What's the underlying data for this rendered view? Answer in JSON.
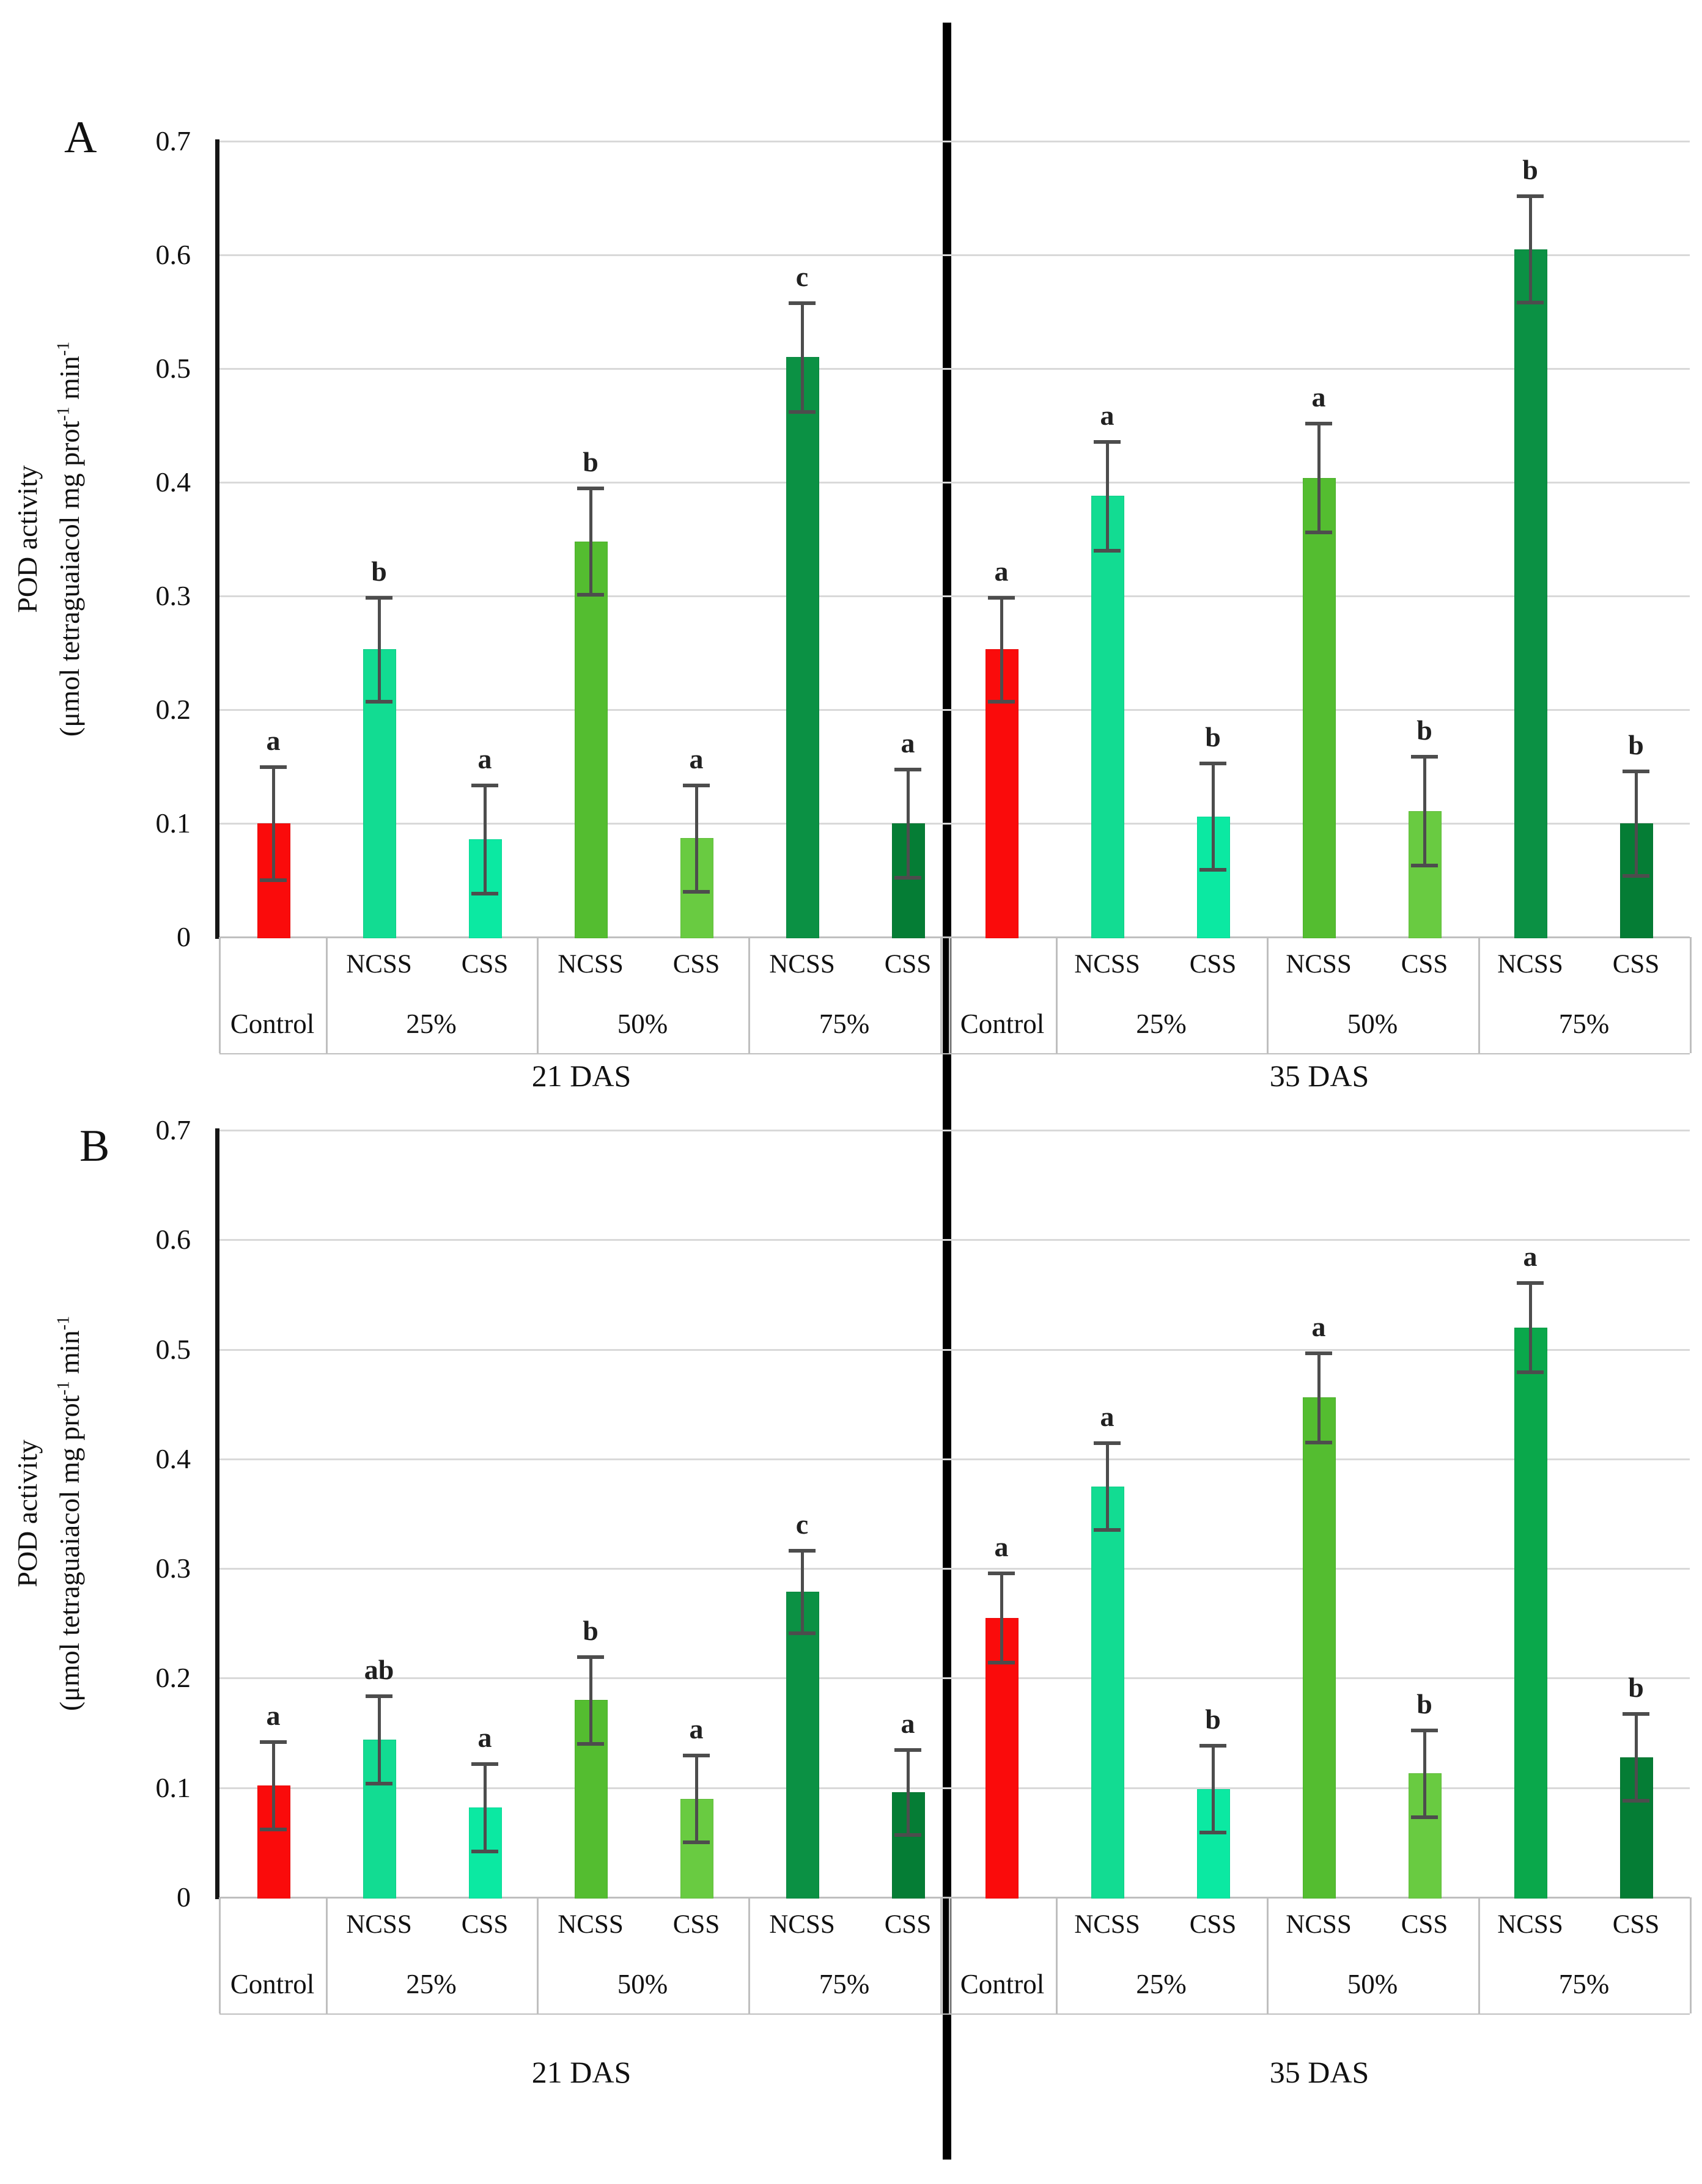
{
  "figure": {
    "panel_a_label": "A",
    "panel_b_label": "B",
    "divider": {
      "color": "#000000"
    }
  },
  "y_axis": {
    "title_line1": "POD activity",
    "unit_prefix": "(μmol tetraguaiacol mg prot",
    "sup1": "-1",
    "unit_mid": " min",
    "sup2": "-1",
    "tick_labels": [
      "0",
      "0.1",
      "0.2",
      "0.3",
      "0.4",
      "0.5",
      "0.6",
      "0.7"
    ]
  },
  "colors": {
    "control": "#fa0b0b",
    "ncss25": "#12dc92",
    "css25": "#0be9a2",
    "ncss50": "#54bd30",
    "css50": "#69cb41",
    "ncss75_dark": "#0b9144",
    "css75_dark": "#057d35",
    "ncss75_medium": "#0aa84b",
    "error_bar": "#4d4d4d",
    "gridline": "#d9d9d9"
  },
  "chart_data": [
    {
      "panel": "A",
      "type": "bar",
      "ylabel": "POD activity (μmol tetraguaiacol mg prot⁻¹ min⁻¹",
      "ylim": [
        0,
        0.7
      ],
      "ytick_step": 0.1,
      "grid": true,
      "sections": [
        {
          "label": "21 DAS",
          "groups": [
            {
              "label": "Control",
              "bars": [
                {
                  "sub": "",
                  "value": 0.1,
                  "err": 0.05,
                  "letter": "a",
                  "color": "#fa0b0b"
                }
              ]
            },
            {
              "label": "25%",
              "bars": [
                {
                  "sub": "NCSS",
                  "value": 0.253,
                  "err": 0.046,
                  "letter": "b",
                  "color": "#12dc92"
                },
                {
                  "sub": "CSS",
                  "value": 0.086,
                  "err": 0.048,
                  "letter": "a",
                  "color": "#0be9a2"
                }
              ]
            },
            {
              "label": "50%",
              "bars": [
                {
                  "sub": "NCSS",
                  "value": 0.348,
                  "err": 0.047,
                  "letter": "b",
                  "color": "#54bd30"
                },
                {
                  "sub": "CSS",
                  "value": 0.087,
                  "err": 0.047,
                  "letter": "a",
                  "color": "#69cb41"
                }
              ]
            },
            {
              "label": "75%",
              "bars": [
                {
                  "sub": "NCSS",
                  "value": 0.51,
                  "err": 0.048,
                  "letter": "c",
                  "color": "#0b9144"
                },
                {
                  "sub": "CSS",
                  "value": 0.1,
                  "err": 0.048,
                  "letter": "a",
                  "color": "#057d35"
                }
              ]
            }
          ]
        },
        {
          "label": "35 DAS",
          "groups": [
            {
              "label": "Control",
              "bars": [
                {
                  "sub": "",
                  "value": 0.253,
                  "err": 0.046,
                  "letter": "a",
                  "color": "#fa0b0b"
                }
              ]
            },
            {
              "label": "25%",
              "bars": [
                {
                  "sub": "NCSS",
                  "value": 0.388,
                  "err": 0.048,
                  "letter": "a",
                  "color": "#12dc92"
                },
                {
                  "sub": "CSS",
                  "value": 0.106,
                  "err": 0.047,
                  "letter": "b",
                  "color": "#0be9a2"
                }
              ]
            },
            {
              "label": "50%",
              "bars": [
                {
                  "sub": "NCSS",
                  "value": 0.404,
                  "err": 0.048,
                  "letter": "a",
                  "color": "#54bd30"
                },
                {
                  "sub": "CSS",
                  "value": 0.111,
                  "err": 0.048,
                  "letter": "b",
                  "color": "#69cb41"
                }
              ]
            },
            {
              "label": "75%",
              "bars": [
                {
                  "sub": "NCSS",
                  "value": 0.605,
                  "err": 0.047,
                  "letter": "b",
                  "color": "#0b9144"
                },
                {
                  "sub": "CSS",
                  "value": 0.1,
                  "err": 0.046,
                  "letter": "b",
                  "color": "#057d35"
                }
              ]
            }
          ]
        }
      ]
    },
    {
      "panel": "B",
      "type": "bar",
      "ylabel": "POD activity (μmol tetraguaiacol mg prot⁻¹ min⁻¹",
      "ylim": [
        0,
        0.7
      ],
      "ytick_step": 0.1,
      "grid": true,
      "sections": [
        {
          "label": "21 DAS",
          "groups": [
            {
              "label": "Control",
              "bars": [
                {
                  "sub": "",
                  "value": 0.102,
                  "err": 0.04,
                  "letter": "a",
                  "color": "#fa0b0b"
                }
              ]
            },
            {
              "label": "25%",
              "bars": [
                {
                  "sub": "NCSS",
                  "value": 0.144,
                  "err": 0.04,
                  "letter": "ab",
                  "color": "#12dc92"
                },
                {
                  "sub": "CSS",
                  "value": 0.082,
                  "err": 0.04,
                  "letter": "a",
                  "color": "#0be9a2"
                }
              ]
            },
            {
              "label": "50%",
              "bars": [
                {
                  "sub": "NCSS",
                  "value": 0.18,
                  "err": 0.04,
                  "letter": "b",
                  "color": "#54bd30"
                },
                {
                  "sub": "CSS",
                  "value": 0.09,
                  "err": 0.04,
                  "letter": "a",
                  "color": "#69cb41"
                }
              ]
            },
            {
              "label": "75%",
              "bars": [
                {
                  "sub": "NCSS",
                  "value": 0.279,
                  "err": 0.038,
                  "letter": "c",
                  "color": "#0b9144"
                },
                {
                  "sub": "CSS",
                  "value": 0.096,
                  "err": 0.039,
                  "letter": "a",
                  "color": "#057d35"
                }
              ]
            }
          ]
        },
        {
          "label": "35 DAS",
          "groups": [
            {
              "label": "Control",
              "bars": [
                {
                  "sub": "",
                  "value": 0.255,
                  "err": 0.041,
                  "letter": "a",
                  "color": "#fa0b0b"
                }
              ]
            },
            {
              "label": "25%",
              "bars": [
                {
                  "sub": "NCSS",
                  "value": 0.375,
                  "err": 0.04,
                  "letter": "a",
                  "color": "#12dc92"
                },
                {
                  "sub": "CSS",
                  "value": 0.099,
                  "err": 0.04,
                  "letter": "b",
                  "color": "#0be9a2"
                }
              ]
            },
            {
              "label": "50%",
              "bars": [
                {
                  "sub": "NCSS",
                  "value": 0.456,
                  "err": 0.041,
                  "letter": "a",
                  "color": "#54bd30"
                },
                {
                  "sub": "CSS",
                  "value": 0.113,
                  "err": 0.04,
                  "letter": "b",
                  "color": "#69cb41"
                }
              ]
            },
            {
              "label": "75%",
              "bars": [
                {
                  "sub": "NCSS",
                  "value": 0.52,
                  "err": 0.041,
                  "letter": "a",
                  "color": "#0aa84b"
                },
                {
                  "sub": "CSS",
                  "value": 0.128,
                  "err": 0.04,
                  "letter": "b",
                  "color": "#057d35"
                }
              ]
            }
          ]
        }
      ]
    }
  ]
}
